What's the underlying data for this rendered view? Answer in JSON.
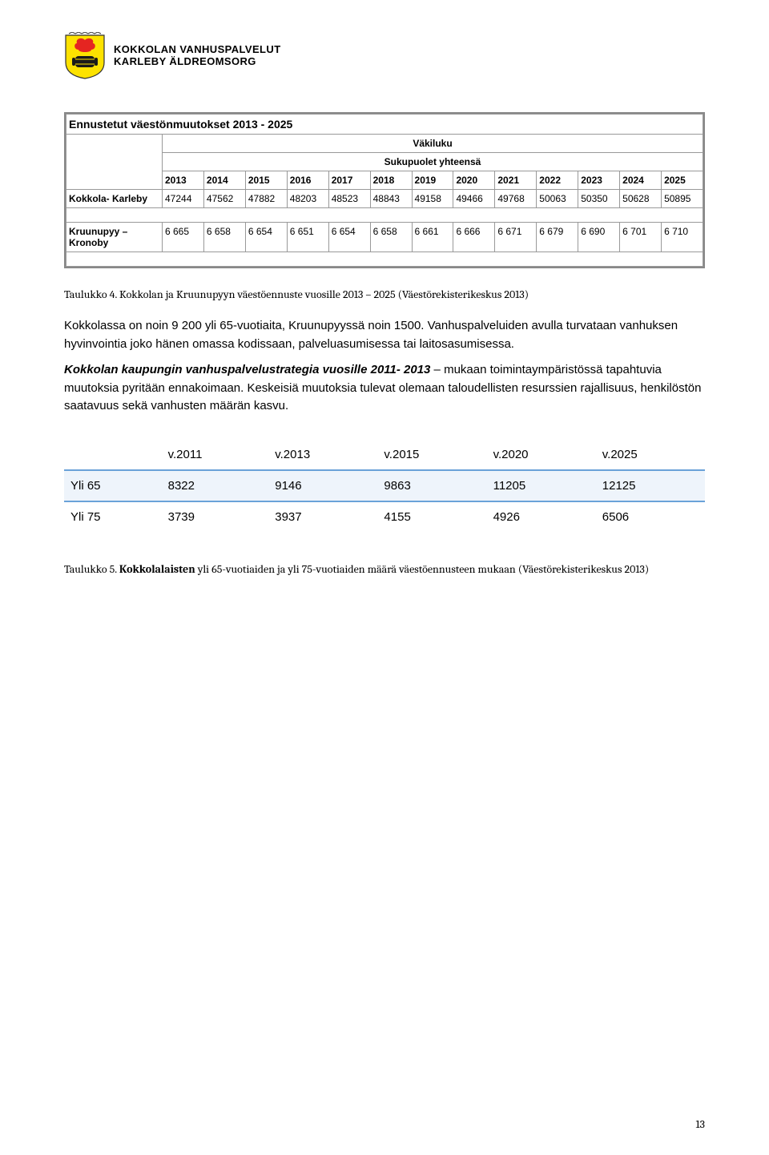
{
  "header": {
    "line1": "KOKKOLAN VANHUSPALVELUT",
    "line2": "KARLEBY ÄLDREOMSORG",
    "crest_colors": {
      "bg": "#fde200",
      "flame": "#e52521",
      "barrel": "#1a1a1a",
      "border": "#333"
    }
  },
  "table1": {
    "title": "Ennustetut väestönmuutokset 2013 - 2025",
    "super_header": "Väkiluku",
    "sub_header": "Sukupuolet yhteensä",
    "years": [
      "2013",
      "2014",
      "2015",
      "2016",
      "2017",
      "2018",
      "2019",
      "2020",
      "2021",
      "2022",
      "2023",
      "2024",
      "2025"
    ],
    "rows": [
      {
        "label": "Kokkola- Karleby",
        "values": [
          "47244",
          "47562",
          "47882",
          "48203",
          "48523",
          "48843",
          "49158",
          "49466",
          "49768",
          "50063",
          "50350",
          "50628",
          "50895"
        ]
      },
      {
        "label": "Kruunupyy – Kronoby",
        "values": [
          "6 665",
          "6 658",
          "6 654",
          "6 651",
          "6 654",
          "6 658",
          "6 661",
          "6 666",
          "6 671",
          "6 679",
          "6 690",
          "6 701",
          "6 710"
        ]
      }
    ]
  },
  "caption1": "Taulukko 4. Kokkolan ja Kruunupyyn väestöennuste vuosille 2013 – 2025 (Väestörekisterikeskus 2013)",
  "para1": "Kokkolassa on noin 9 200 yli 65-vuotiaita, Kruunupyyssä noin 1500. Vanhuspalveluiden avulla turvataan vanhuksen hyvinvointia joko hänen omassa kodissaan, palveluasumisessa tai laitosasumisessa.",
  "para2_bold": "Kokkolan kaupungin vanhuspalvelustrategia vuosille 2011- 2013",
  "para2_rest": " – mukaan toimintaympäristössä tapahtuvia muutoksia pyritään ennakoimaan. Keskeisiä muutoksia tulevat olemaan taloudellisten resurssien rajallisuus, henkilöstön saatavuus sekä vanhusten määrän kasvu.",
  "table2": {
    "years": [
      "v.2011",
      "v.2013",
      "v.2015",
      "v.2020",
      "v.2025"
    ],
    "rows": [
      {
        "label": "Yli 65",
        "values": [
          "8322",
          "9146",
          "9863",
          "11205",
          "12125"
        ]
      },
      {
        "label": "Yli 75",
        "values": [
          "3739",
          "3937",
          "4155",
          "4926",
          "6506"
        ]
      }
    ],
    "highlight_row_index": 0,
    "highlight_bg": "#eef4fb",
    "highlight_border": "#6aa2d8"
  },
  "caption2_prefix": "Taulukko 5. ",
  "caption2_bold": "Kokkolalaisten",
  "caption2_rest": " yli 65-vuotiaiden ja yli 75-vuotiaiden määrä väestöennusteen mukaan (Väestörekisterikeskus 2013)",
  "page_number": "13"
}
